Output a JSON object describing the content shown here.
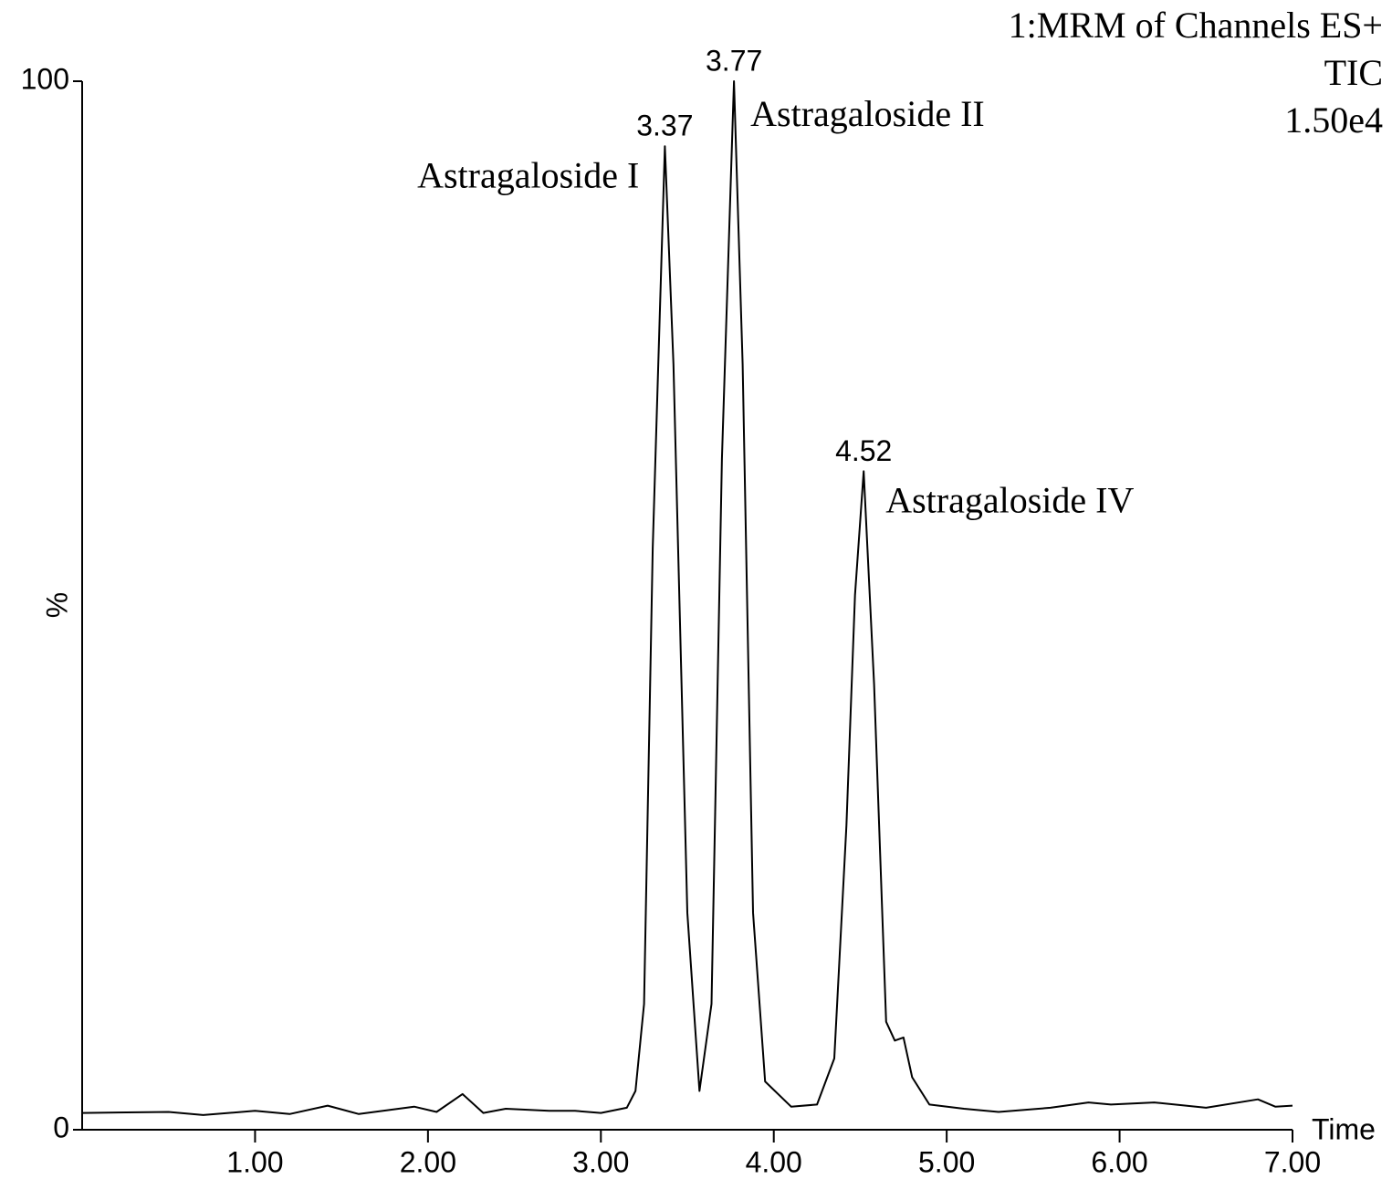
{
  "chart_data": {
    "type": "line",
    "header": [
      "1:MRM of Channels ES+",
      "TIC",
      "1.50e4"
    ],
    "y_label": "%",
    "x_label": "Time",
    "x": [
      0.0,
      0.5,
      0.7,
      1.0,
      1.2,
      1.42,
      1.6,
      1.92,
      2.05,
      2.2,
      2.32,
      2.45,
      2.7,
      2.85,
      3.0,
      3.15,
      3.2,
      3.25,
      3.3,
      3.37,
      3.42,
      3.5,
      3.57,
      3.64,
      3.7,
      3.77,
      3.82,
      3.88,
      3.95,
      4.1,
      4.25,
      4.35,
      4.42,
      4.47,
      4.52,
      4.58,
      4.65,
      4.7,
      4.75,
      4.8,
      4.9,
      5.1,
      5.3,
      5.6,
      5.82,
      5.95,
      6.2,
      6.5,
      6.8,
      6.9,
      7.0
    ],
    "series": [
      {
        "name": "TIC",
        "color": "#000000",
        "values": [
          1.6,
          1.7,
          1.4,
          1.8,
          1.5,
          2.3,
          1.5,
          2.2,
          1.7,
          3.4,
          1.6,
          2.0,
          1.8,
          1.8,
          1.6,
          2.1,
          3.7,
          12,
          55.5,
          93.8,
          73,
          20.7,
          3.7,
          12,
          64,
          100,
          73,
          20.7,
          4.6,
          2.2,
          2.4,
          6.8,
          29,
          51,
          62.8,
          42.5,
          10.3,
          8.5,
          8.8,
          5,
          2.4,
          2.0,
          1.7,
          2.1,
          2.6,
          2.4,
          2.6,
          2.1,
          2.9,
          2.2,
          2.3
        ]
      }
    ],
    "peaks": [
      {
        "x": 3.37,
        "y": 93.8,
        "name": "Astragaloside I"
      },
      {
        "x": 3.77,
        "y": 100,
        "name": "Astragaloside II"
      },
      {
        "x": 4.52,
        "y": 62.8,
        "name": "Astragaloside IV"
      }
    ],
    "xlim": [
      0,
      7
    ],
    "ylim": [
      0,
      100
    ],
    "xticks": [
      {
        "value": 1,
        "label": "1.00"
      },
      {
        "value": 2,
        "label": "2.00"
      },
      {
        "value": 3,
        "label": "3.00"
      },
      {
        "value": 4,
        "label": "4.00"
      },
      {
        "value": 5,
        "label": "5.00"
      },
      {
        "value": 6,
        "label": "6.00"
      },
      {
        "value": 7,
        "label": "7.00"
      }
    ],
    "yticks": [
      0,
      100
    ],
    "grid": false
  }
}
